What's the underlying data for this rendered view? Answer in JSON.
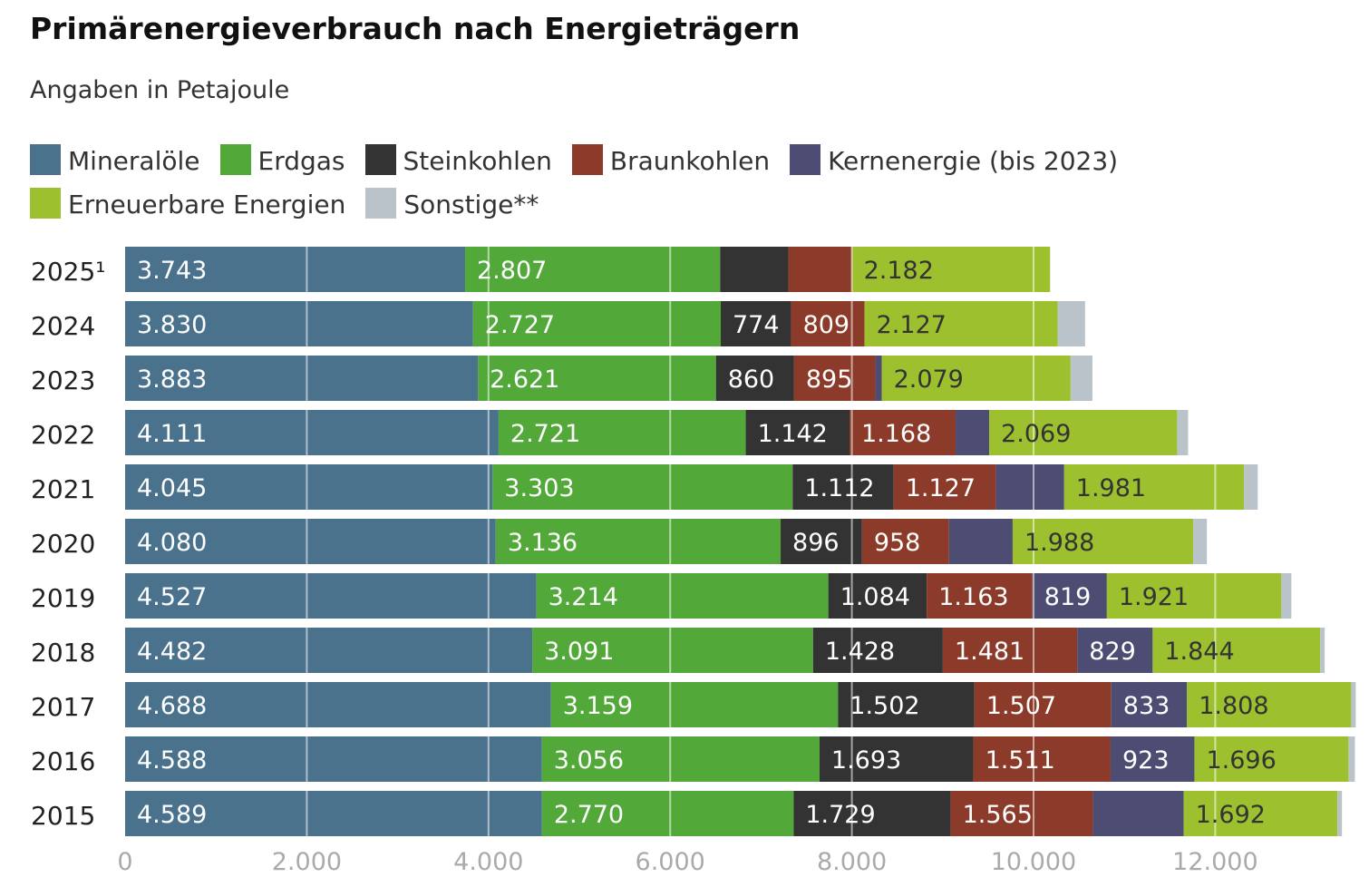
{
  "chart_data": {
    "type": "bar",
    "orientation": "horizontal",
    "stacked": true,
    "title": "Primärenergieverbrauch nach Energieträgern",
    "subtitle": "Angaben in Petajoule",
    "categories": [
      "2025¹",
      "2024",
      "2023",
      "2022",
      "2021",
      "2020",
      "2019",
      "2018",
      "2017",
      "2016",
      "2015"
    ],
    "series": [
      {
        "name": "Mineralöle",
        "color": "#4a728d",
        "values": [
          3743,
          3830,
          3883,
          4111,
          4045,
          4080,
          4527,
          4482,
          4688,
          4588,
          4589
        ],
        "labels": [
          "3.743",
          "3.830",
          "3.883",
          "4.111",
          "4.045",
          "4.080",
          "4.527",
          "4.482",
          "4.688",
          "4.588",
          "4.589"
        ],
        "label_color": "#ffffff"
      },
      {
        "name": "Erdgas",
        "color": "#52a93a",
        "values": [
          2807,
          2727,
          2621,
          2721,
          3303,
          3136,
          3214,
          3091,
          3159,
          3056,
          2770
        ],
        "labels": [
          "2.807",
          "2.727",
          "2.621",
          "2.721",
          "3.303",
          "3.136",
          "3.214",
          "3.091",
          "3.159",
          "3.056",
          "2.770"
        ],
        "label_color": "#ffffff"
      },
      {
        "name": "Steinkohlen",
        "color": "#333333",
        "values": [
          750,
          774,
          860,
          1142,
          1112,
          896,
          1084,
          1428,
          1502,
          1693,
          1729
        ],
        "labels": [
          "",
          "774",
          "860",
          "1.142",
          "1.112",
          "896",
          "1.084",
          "1.428",
          "1.502",
          "1.693",
          "1.729"
        ],
        "label_color": "#ffffff"
      },
      {
        "name": "Braunkohlen",
        "color": "#8c3b2a",
        "values": [
          700,
          809,
          895,
          1168,
          1127,
          958,
          1163,
          1481,
          1507,
          1511,
          1565
        ],
        "labels": [
          "",
          "809",
          "895",
          "1.168",
          "1.127",
          "958",
          "1.163",
          "1.481",
          "1.507",
          "1.511",
          "1.565"
        ],
        "label_color": "#ffffff"
      },
      {
        "name": "Kernenergie (bis 2023)",
        "color": "#4d4c72",
        "values": [
          0,
          0,
          70,
          370,
          750,
          700,
          819,
          829,
          833,
          923,
          1000
        ],
        "labels": [
          "",
          "",
          "",
          "",
          "",
          "",
          "819",
          "829",
          "833",
          "923",
          ""
        ],
        "label_color": "#ffffff"
      },
      {
        "name": "Erneuerbare Energien",
        "color": "#9dc02f",
        "values": [
          2182,
          2127,
          2079,
          2069,
          1981,
          1988,
          1921,
          1844,
          1808,
          1696,
          1692
        ],
        "labels": [
          "2.182",
          "2.127",
          "2.079",
          "2.069",
          "1.981",
          "1.988",
          "1.921",
          "1.844",
          "1.808",
          "1.696",
          "1.692"
        ],
        "label_color": "#333333"
      },
      {
        "name": "Sonstige**",
        "color": "#bac3ca",
        "values": [
          0,
          300,
          240,
          120,
          150,
          150,
          110,
          50,
          50,
          70,
          50
        ],
        "labels": [
          "",
          "",
          "",
          "",
          "",
          "",
          "",
          "",
          "",
          "",
          ""
        ],
        "label_color": "#333333"
      }
    ],
    "xlim": [
      0,
      13600
    ],
    "xticks": [
      0,
      2000,
      4000,
      6000,
      8000,
      10000,
      12000
    ],
    "xtick_labels": [
      "0",
      "2.000",
      "4.000",
      "6.000",
      "8.000",
      "10.000",
      "12.000"
    ],
    "grid": true,
    "legend_placement": "top"
  }
}
